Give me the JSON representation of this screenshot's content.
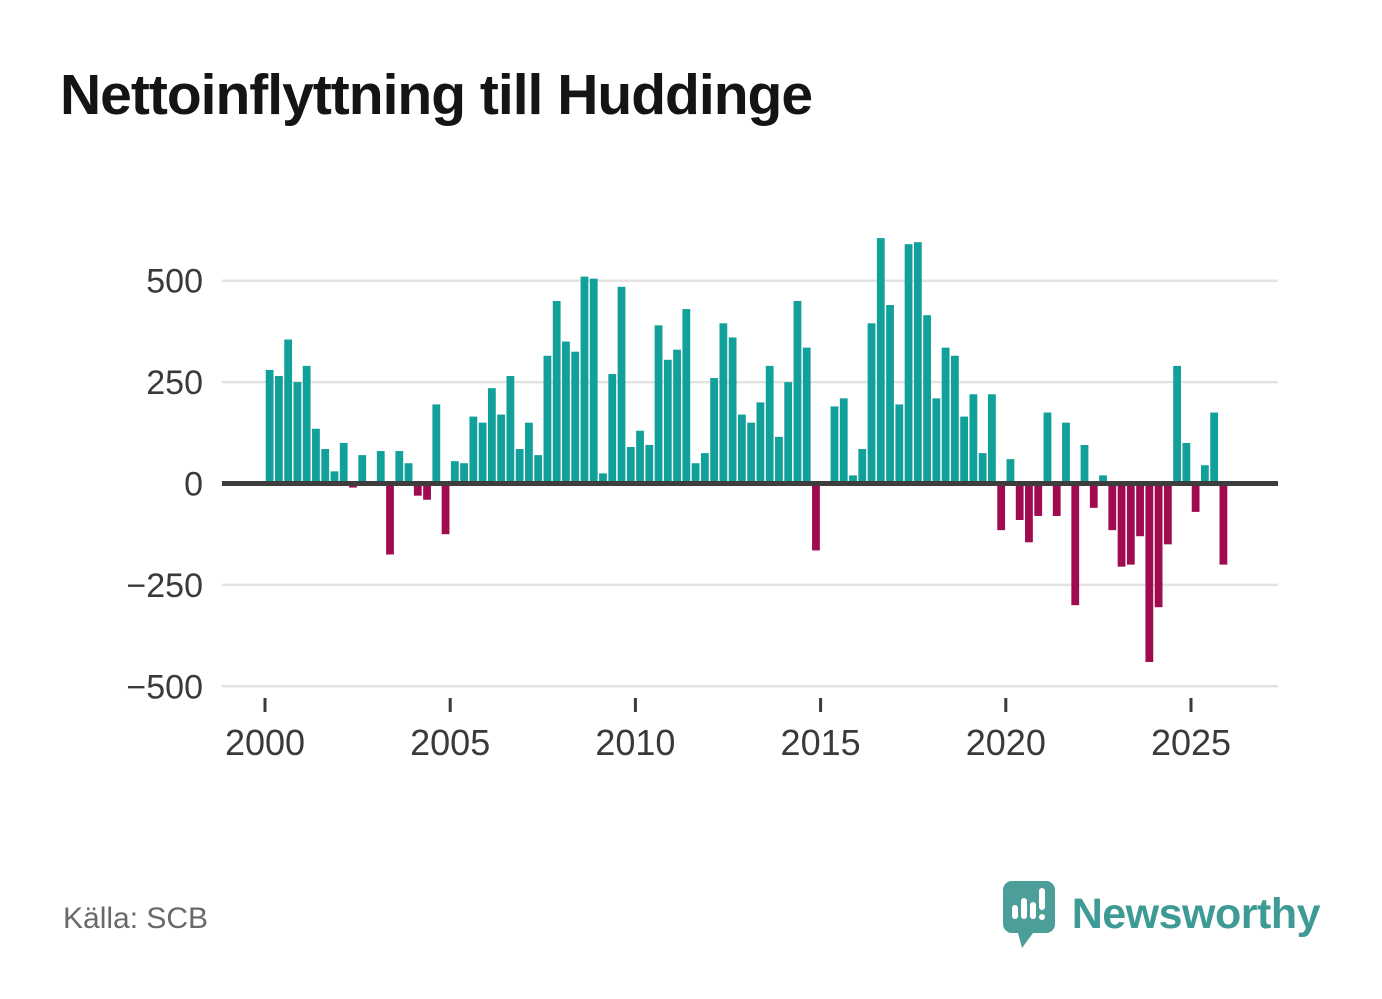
{
  "title": "Nettoinflyttning till Huddinge",
  "source": "Källa: SCB",
  "branding": {
    "name": "Newsworthy",
    "icon": "bar-chart-speech-bubble-icon",
    "color": "#3e9a94",
    "icon_color": "#4c9e99"
  },
  "colors": {
    "positive_bar": "#12a19a",
    "negative_bar": "#a00b50",
    "zero_axis": "#3d3d3d",
    "gridline": "#e3e3e3",
    "tick_text": "#3a3a3a",
    "title_text": "#141414",
    "source_text": "#696969",
    "background": "#ffffff"
  },
  "chart_data": {
    "type": "bar",
    "title": "Nettoinflyttning till Huddinge",
    "xlabel": "",
    "ylabel": "",
    "x_unit": "quarter",
    "grid": true,
    "legend": "none",
    "yticks": [
      500,
      250,
      0,
      -250,
      -500
    ],
    "ytick_labels": [
      "500",
      "250",
      "0",
      "−250",
      "−500"
    ],
    "ylim": [
      -560,
      630
    ],
    "xticks": [
      2000,
      2005,
      2010,
      2015,
      2020,
      2025
    ],
    "xtick_labels": [
      "2000",
      "2005",
      "2010",
      "2015",
      "2020",
      "2025"
    ],
    "x": [
      "2000 Q1",
      "2000 Q2",
      "2000 Q3",
      "2000 Q4",
      "2001 Q1",
      "2001 Q2",
      "2001 Q3",
      "2001 Q4",
      "2002 Q1",
      "2002 Q2",
      "2002 Q3",
      "2002 Q4",
      "2003 Q1",
      "2003 Q2",
      "2003 Q3",
      "2003 Q4",
      "2004 Q1",
      "2004 Q2",
      "2004 Q3",
      "2004 Q4",
      "2005 Q1",
      "2005 Q2",
      "2005 Q3",
      "2005 Q4",
      "2006 Q1",
      "2006 Q2",
      "2006 Q3",
      "2006 Q4",
      "2007 Q1",
      "2007 Q2",
      "2007 Q3",
      "2007 Q4",
      "2008 Q1",
      "2008 Q2",
      "2008 Q3",
      "2008 Q4",
      "2009 Q1",
      "2009 Q2",
      "2009 Q3",
      "2009 Q4",
      "2010 Q1",
      "2010 Q2",
      "2010 Q3",
      "2010 Q4",
      "2011 Q1",
      "2011 Q2",
      "2011 Q3",
      "2011 Q4",
      "2012 Q1",
      "2012 Q2",
      "2012 Q3",
      "2012 Q4",
      "2013 Q1",
      "2013 Q2",
      "2013 Q3",
      "2013 Q4",
      "2014 Q1",
      "2014 Q2",
      "2014 Q3",
      "2014 Q4",
      "2015 Q1",
      "2015 Q2",
      "2015 Q3",
      "2015 Q4",
      "2016 Q1",
      "2016 Q2",
      "2016 Q3",
      "2016 Q4",
      "2017 Q1",
      "2017 Q2",
      "2017 Q3",
      "2017 Q4",
      "2018 Q1",
      "2018 Q2",
      "2018 Q3",
      "2018 Q4",
      "2019 Q1",
      "2019 Q2",
      "2019 Q3",
      "2019 Q4",
      "2020 Q1",
      "2020 Q2",
      "2020 Q3",
      "2020 Q4",
      "2021 Q1",
      "2021 Q2",
      "2021 Q3",
      "2021 Q4",
      "2022 Q1",
      "2022 Q2",
      "2022 Q3",
      "2022 Q4",
      "2023 Q1",
      "2023 Q2",
      "2023 Q3",
      "2023 Q4",
      "2024 Q1",
      "2024 Q2",
      "2024 Q3",
      "2024 Q4",
      "2025 Q1",
      "2025 Q2",
      "2025 Q3",
      "2025 Q4"
    ],
    "values": [
      280,
      265,
      355,
      250,
      290,
      135,
      85,
      30,
      100,
      -10,
      70,
      0,
      80,
      -175,
      80,
      50,
      -30,
      -40,
      195,
      -125,
      55,
      50,
      165,
      150,
      235,
      170,
      265,
      85,
      150,
      70,
      315,
      450,
      350,
      325,
      510,
      505,
      25,
      270,
      485,
      90,
      130,
      95,
      390,
      305,
      330,
      430,
      50,
      75,
      260,
      395,
      360,
      170,
      150,
      200,
      290,
      115,
      250,
      450,
      335,
      -165,
      0,
      190,
      210,
      20,
      85,
      395,
      605,
      440,
      195,
      590,
      595,
      415,
      210,
      335,
      315,
      165,
      220,
      75,
      220,
      -115,
      60,
      -90,
      -145,
      -80,
      175,
      -80,
      150,
      -300,
      95,
      -60,
      20,
      -115,
      -205,
      -200,
      -130,
      -440,
      -305,
      -150,
      290,
      100,
      -70,
      45,
      175,
      -200
    ]
  }
}
